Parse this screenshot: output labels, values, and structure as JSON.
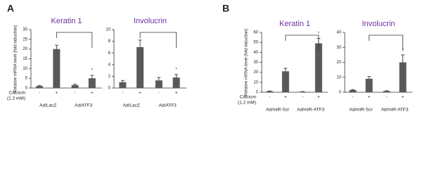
{
  "panel_labels": [
    "A",
    "B"
  ],
  "chart_data": [
    {
      "type": "bar",
      "title": "Keratin 1",
      "ylabel": "Relative mRNA level (fold induction)",
      "categories": [
        "-",
        "+",
        "-",
        "+"
      ],
      "groups": [
        "Ad/LacZ",
        "Ad/ATF3"
      ],
      "condition_label": "Calcium",
      "condition_unit": "(1.2 mM)",
      "values": [
        1,
        20,
        1.5,
        5
      ],
      "errors": [
        0.3,
        2,
        0.5,
        1.5
      ],
      "markers": [
        null,
        null,
        null,
        "*"
      ],
      "color": "#595959",
      "ylim": [
        0,
        30
      ],
      "yticks": [
        0,
        5,
        10,
        15,
        20,
        25,
        30
      ]
    },
    {
      "type": "bar",
      "title": "Involucrin",
      "categories": [
        "-",
        "+",
        "-",
        "+"
      ],
      "groups": [
        "Ad/LacZ",
        "Ad/ATF3"
      ],
      "values": [
        1,
        7,
        1.3,
        1.8
      ],
      "errors": [
        0.3,
        1.2,
        0.5,
        0.5
      ],
      "markers": [
        null,
        null,
        null,
        "*"
      ],
      "color": "#595959",
      "ylim": [
        0,
        10
      ],
      "yticks": [
        0,
        2,
        4,
        6,
        8,
        10
      ]
    },
    {
      "type": "bar",
      "title": "Keratin 1",
      "ylabel": "Relative mRNA level (fold induction)",
      "categories": [
        "-",
        "+",
        "-",
        "+"
      ],
      "groups": [
        "Ad/miR-Scr",
        "Ad/miR-ATF3"
      ],
      "condition_label": "Calcium",
      "condition_unit": "(1.2 mM)",
      "values": [
        1,
        21,
        0.5,
        49
      ],
      "errors": [
        0.3,
        3,
        0.2,
        5
      ],
      "markers": [
        null,
        null,
        null,
        "*"
      ],
      "color": "#595959",
      "ylim": [
        0,
        60
      ],
      "yticks": [
        0,
        10,
        20,
        30,
        40,
        50,
        60
      ]
    },
    {
      "type": "bar",
      "title": "Involucrin",
      "categories": [
        "-",
        "+",
        "-",
        "+"
      ],
      "groups": [
        "Ad/miR-Scr",
        "Ad/miR-ATF3"
      ],
      "values": [
        1.5,
        9,
        0.8,
        20
      ],
      "errors": [
        0.3,
        1.5,
        0.2,
        5
      ],
      "markers": [
        null,
        null,
        null,
        "*"
      ],
      "color": "#595959",
      "ylim": [
        0,
        40
      ],
      "yticks": [
        0,
        10,
        20,
        30,
        40
      ]
    }
  ]
}
